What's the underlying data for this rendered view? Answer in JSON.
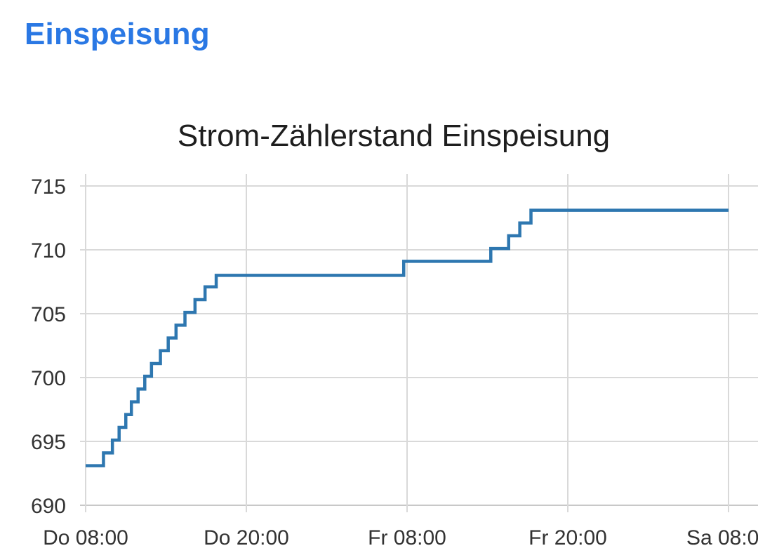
{
  "header": {
    "title": "Einspeisung"
  },
  "colors": {
    "accent": "#2a78e4",
    "series": "#2e77b0",
    "grid": "#d9d9d9"
  },
  "chart_data": {
    "type": "line",
    "step": true,
    "title": "Strom-Zählerstand Einspeisung",
    "xlabel": "",
    "ylabel": "",
    "grid": true,
    "legend": "none",
    "ylim": [
      690,
      715
    ],
    "y_ticks": [
      690,
      695,
      700,
      705,
      710,
      715
    ],
    "xlim": [
      "Do 08:00",
      "Sa 08:00"
    ],
    "x_ticks": [
      "Do 08:00",
      "Do 20:00",
      "Fr 08:00",
      "Fr 20:00",
      "Sa 08:00"
    ],
    "series": [
      {
        "values": [
          {
            "x": "Do 08:00",
            "y": 693.1
          },
          {
            "x": "Do 09:20",
            "y": 694.1
          },
          {
            "x": "Do 10:00",
            "y": 695.1
          },
          {
            "x": "Do 10:30",
            "y": 696.1
          },
          {
            "x": "Do 11:00",
            "y": 697.1
          },
          {
            "x": "Do 11:25",
            "y": 698.1
          },
          {
            "x": "Do 11:55",
            "y": 699.1
          },
          {
            "x": "Do 12:25",
            "y": 700.1
          },
          {
            "x": "Do 12:55",
            "y": 701.1
          },
          {
            "x": "Do 13:35",
            "y": 702.1
          },
          {
            "x": "Do 14:10",
            "y": 703.1
          },
          {
            "x": "Do 14:45",
            "y": 704.1
          },
          {
            "x": "Do 15:25",
            "y": 705.1
          },
          {
            "x": "Do 16:10",
            "y": 706.1
          },
          {
            "x": "Do 16:55",
            "y": 707.1
          },
          {
            "x": "Do 17:45",
            "y": 708.0
          },
          {
            "x": "Fr 07:45",
            "y": 709.1
          },
          {
            "x": "Fr 14:15",
            "y": 710.1
          },
          {
            "x": "Fr 15:35",
            "y": 711.1
          },
          {
            "x": "Fr 16:25",
            "y": 712.1
          },
          {
            "x": "Fr 17:15",
            "y": 713.1
          },
          {
            "x": "Sa 08:00",
            "y": 713.1
          }
        ]
      }
    ]
  }
}
